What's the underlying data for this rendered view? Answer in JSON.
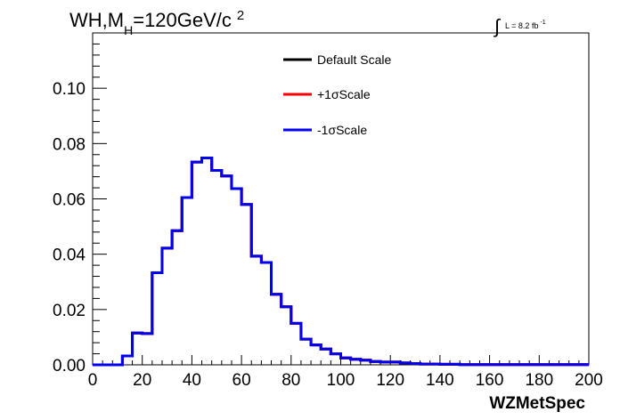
{
  "chart_data": {
    "type": "histogram",
    "title_main": "WH,M",
    "title_sub": "H",
    "title_rest": "=120GeV/c",
    "title_sup": "2",
    "lumi_label": "L = 8.2 fb",
    "lumi_sup": "-1",
    "xlabel": "WZMetSpec",
    "ylabel": "",
    "xlim": [
      0,
      200
    ],
    "ylim": [
      0,
      0.12
    ],
    "x_ticks": [
      "0",
      "20",
      "40",
      "60",
      "80",
      "100",
      "120",
      "140",
      "160",
      "180",
      "200"
    ],
    "y_ticks": [
      "0.00",
      "0.02",
      "0.04",
      "0.06",
      "0.08",
      "0.10"
    ],
    "legend_position": "top-center",
    "bin_width": 4,
    "x_start": 0,
    "series": [
      {
        "name": "Default Scale",
        "color": "#000000",
        "values": [
          0,
          0,
          0,
          0.0032,
          0.0115,
          0.0113,
          0.0333,
          0.0422,
          0.0485,
          0.0605,
          0.0733,
          0.0748,
          0.0703,
          0.0683,
          0.0637,
          0.058,
          0.0393,
          0.037,
          0.0255,
          0.021,
          0.015,
          0.0093,
          0.0072,
          0.0057,
          0.004,
          0.0025,
          0.002,
          0.0017,
          0.0012,
          0.001,
          0.001,
          0.0007,
          0.0005,
          0.0003,
          0.0003,
          0.0002,
          0.0002,
          0.0001,
          0.0001,
          0.0001,
          0.0001,
          0.0001,
          0.0001,
          0.0001,
          0.0001,
          0.0001,
          0.0001,
          0.0001,
          0.0001,
          0.0001
        ]
      },
      {
        "name": "+1σScale",
        "color": "#ff0000",
        "values": [
          0,
          0,
          0,
          0.0032,
          0.0115,
          0.0113,
          0.0333,
          0.0422,
          0.0485,
          0.0605,
          0.0733,
          0.0748,
          0.0703,
          0.0683,
          0.0637,
          0.058,
          0.0393,
          0.037,
          0.0255,
          0.021,
          0.015,
          0.0093,
          0.0072,
          0.0057,
          0.004,
          0.0025,
          0.002,
          0.0017,
          0.0012,
          0.001,
          0.001,
          0.0007,
          0.0005,
          0.0003,
          0.0003,
          0.0002,
          0.0002,
          0.0001,
          0.0001,
          0.0001,
          0.0001,
          0.0001,
          0.0001,
          0.0001,
          0.0001,
          0.0001,
          0.0001,
          0.0001,
          0.0001,
          0.0001
        ]
      },
      {
        "name": "-1σScale",
        "color": "#0000ee",
        "values": [
          0,
          0,
          0,
          0.0032,
          0.0115,
          0.0113,
          0.0333,
          0.0422,
          0.0485,
          0.0605,
          0.0733,
          0.0748,
          0.0703,
          0.0683,
          0.0637,
          0.058,
          0.0393,
          0.037,
          0.0255,
          0.021,
          0.015,
          0.0093,
          0.0072,
          0.0057,
          0.004,
          0.0025,
          0.002,
          0.0017,
          0.0012,
          0.001,
          0.001,
          0.0007,
          0.0005,
          0.0003,
          0.0003,
          0.0002,
          0.0002,
          0.0001,
          0.0001,
          0.0001,
          0.0001,
          0.0001,
          0.0001,
          0.0001,
          0.0001,
          0.0001,
          0.0001,
          0.0001,
          0.0001,
          0.0001
        ]
      }
    ]
  }
}
